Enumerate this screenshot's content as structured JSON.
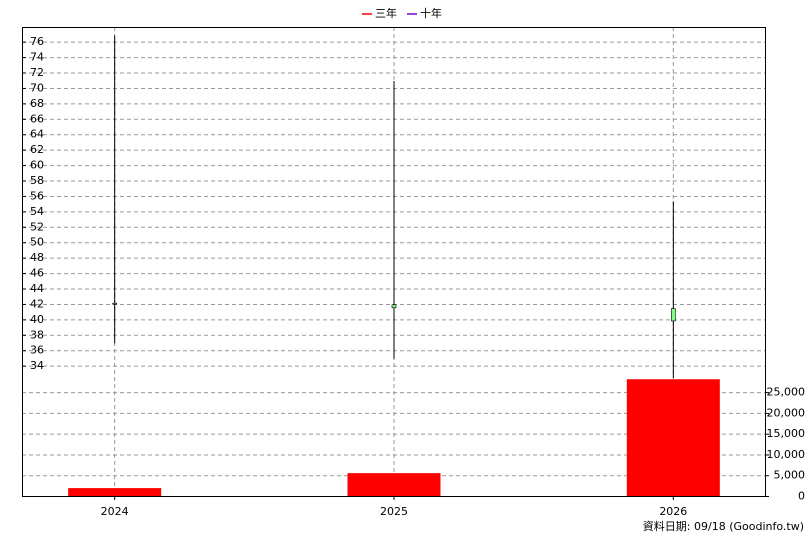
{
  "chart_data": [
    {
      "type": "candlestick",
      "legend": [
        {
          "name": "三年",
          "color": "#ff0000"
        },
        {
          "name": "十年",
          "color": "#8000c0"
        }
      ],
      "x": [
        2024,
        2025,
        2026
      ],
      "open": [
        42.1,
        41.9,
        41.4
      ],
      "high": [
        76.8,
        70.9,
        55.3
      ],
      "low": [
        36.9,
        34.9,
        32.4
      ],
      "close": [
        42.0,
        41.5,
        39.8
      ],
      "color": "#80ff80",
      "xlim": [
        2023.67,
        2026.33
      ],
      "xticks": [
        2024,
        2025,
        2026
      ],
      "ylim": [
        32.4,
        77.9
      ],
      "yticks": [
        34,
        36,
        38,
        40,
        42,
        44,
        46,
        48,
        50,
        52,
        54,
        56,
        58,
        60,
        62,
        64,
        66,
        68,
        70,
        72,
        74,
        76
      ],
      "grid": true
    },
    {
      "type": "bar",
      "x": [
        2024,
        2025,
        2026
      ],
      "values": [
        1900,
        5500,
        28100
      ],
      "color": "#ff0000",
      "ylim": [
        0,
        28400
      ],
      "yticks": [
        0,
        {
          "value": 5000,
          "label": "5,000"
        },
        {
          "value": 10000,
          "label": "10,000"
        },
        {
          "value": 15000,
          "label": "15,000"
        },
        {
          "value": 20000,
          "label": "20,000"
        },
        {
          "value": 25000,
          "label": "25,000"
        }
      ],
      "grid": true
    }
  ],
  "footer": "資料日期: 09/18  (Goodinfo.tw)"
}
